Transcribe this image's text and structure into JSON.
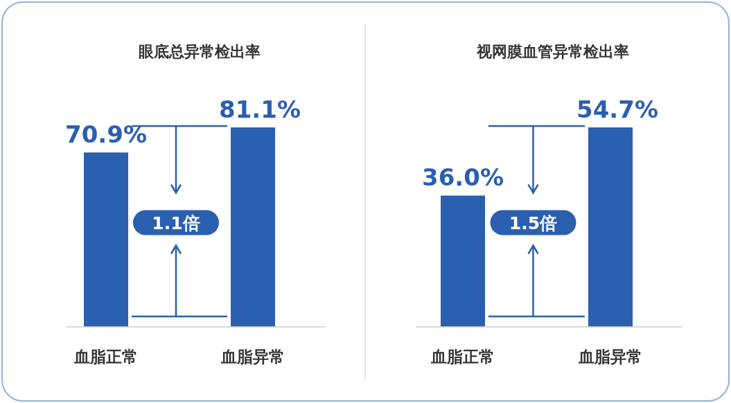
{
  "chart_data": [
    {
      "type": "bar",
      "title": "眼底总异常检出率",
      "categories": [
        "血脂正常",
        "血脂异常"
      ],
      "values": [
        70.9,
        81.1
      ],
      "value_labels": [
        "70.9%",
        "81.1%"
      ],
      "color": "#2b5fb0",
      "tick_labels": "x",
      "annotations": [
        "1.1倍"
      ]
    },
    {
      "type": "bar",
      "title": "视网膜血管异常检出率",
      "categories": [
        "血脂正常",
        "血脂异常"
      ],
      "values": [
        36.0,
        54.7
      ],
      "value_labels": [
        "36.0%",
        "54.7%"
      ],
      "color": "#2b5fb0",
      "tick_labels": "x",
      "annotations": [
        "1.5倍"
      ]
    }
  ]
}
